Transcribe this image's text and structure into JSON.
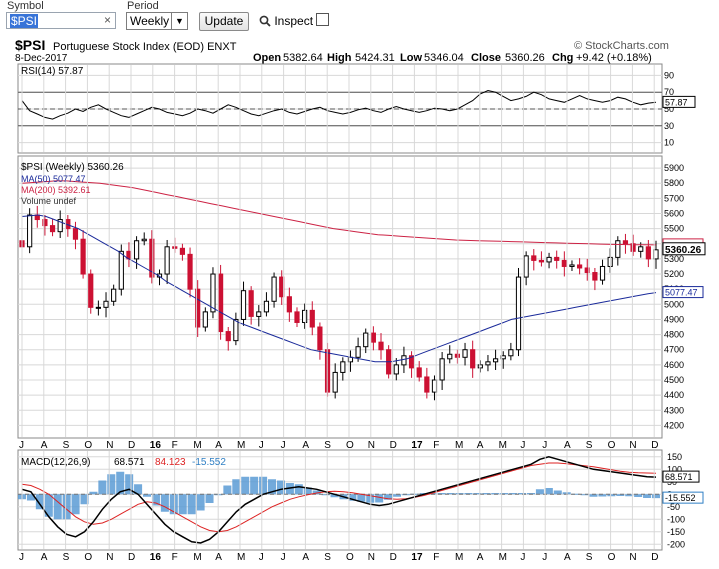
{
  "toolbar": {
    "symbol_label": "Symbol",
    "symbol_value": "$PSI",
    "clear_glyph": "×",
    "period_label": "Period",
    "period_value": "Weekly",
    "update_label": "Update",
    "inspect_label": "Inspect",
    "inspect_checked": false
  },
  "chart_data": {
    "type": "candlestick",
    "symbol": "$PSI",
    "title": "Portuguese Stock Index (EOD) ENXT",
    "date": "8-Dec-2017",
    "watermark": "© StockCharts.com",
    "ohlc_labels": {
      "open": "5382.64",
      "high": "5424.31",
      "low": "5346.04",
      "close": "5360.26",
      "chg": "+9.42 (+0.18%)"
    },
    "x_labels": [
      "J",
      "A",
      "S",
      "O",
      "N",
      "D",
      "16",
      "F",
      "M",
      "A",
      "M",
      "J",
      "J",
      "A",
      "S",
      "O",
      "N",
      "D",
      "17",
      "F",
      "M",
      "A",
      "M",
      "J",
      "J",
      "A",
      "S",
      "O",
      "N",
      "D"
    ],
    "colors": {
      "up": "#000000",
      "down": "#cc1133",
      "ma50": "#1a2a9a",
      "ma200": "#cc2244",
      "volume": "#5b9bd5",
      "grid": "#d8d8d8",
      "macd": "#000000",
      "signal": "#dd2222"
    },
    "rsi": {
      "legend": "RSI(14) 57.87",
      "value": 57.87,
      "ticks": [
        "90",
        "70",
        "50",
        "30",
        "10"
      ],
      "range": [
        0,
        100
      ],
      "overbought": 70,
      "oversold": 30,
      "current_label": "57.87",
      "values": [
        60,
        48,
        44,
        40,
        38,
        42,
        45,
        50,
        47,
        52,
        55,
        50,
        46,
        42,
        40,
        44,
        48,
        52,
        50,
        46,
        44,
        42,
        45,
        50,
        48,
        45,
        50,
        55,
        52,
        48,
        44,
        42,
        45,
        48,
        50,
        46,
        44,
        47,
        50,
        52,
        48,
        46,
        44,
        46,
        49,
        51,
        48,
        46,
        50,
        53,
        50,
        48,
        46,
        48,
        51,
        50,
        48,
        50,
        55,
        60,
        68,
        72,
        70,
        65,
        60,
        62,
        65,
        70,
        67,
        62,
        60,
        58,
        62,
        66,
        62,
        60,
        58,
        60,
        64,
        62,
        58,
        55,
        57,
        58
      ]
    },
    "price": {
      "legend_main": "$PSI (Weekly) 5360.26",
      "legend_ma50": "MA(50) 5077.47",
      "legend_ma200": "MA(200) 5392.61",
      "legend_volume": "Volume undef",
      "y_ticks": [
        4200,
        4300,
        4400,
        4500,
        4600,
        4700,
        4800,
        4900,
        5000,
        5100,
        5200,
        5300,
        5400,
        5500,
        5600,
        5700,
        5800,
        5900
      ],
      "y_range": [
        4130,
        5960
      ],
      "last_close": 5360.26,
      "last_close_label": "5360.26",
      "ma50_last": 5077.47,
      "ma50_label": "5077.47",
      "ma200_last": 5392.61,
      "closes": [
        5380,
        5590,
        5560,
        5520,
        5480,
        5560,
        5500,
        5430,
        5200,
        4980,
        4980,
        5020,
        5100,
        5350,
        5300,
        5420,
        5430,
        5180,
        5200,
        5380,
        5370,
        5330,
        5100,
        4850,
        4950,
        5200,
        4820,
        4760,
        4900,
        5090,
        4920,
        4950,
        5020,
        5180,
        5050,
        4950,
        4880,
        4960,
        4850,
        4700,
        4420,
        4550,
        4620,
        4650,
        4720,
        4810,
        4750,
        4700,
        4540,
        4600,
        4660,
        4580,
        4520,
        4420,
        4500,
        4640,
        4670,
        4650,
        4700,
        4580,
        4600,
        4620,
        4640,
        4660,
        4700,
        5180,
        5320,
        5290,
        5280,
        5310,
        5290,
        5250,
        5260,
        5240,
        5210,
        5160,
        5250,
        5310,
        5420,
        5400,
        5350,
        5380,
        5300,
        5360
      ],
      "ma50": [
        5580,
        5585,
        5590,
        5580,
        5560,
        5540,
        5520,
        5500,
        5470,
        5440,
        5410,
        5380,
        5350,
        5310,
        5280,
        5250,
        5220,
        5190,
        5150,
        5120,
        5090,
        5060,
        5030,
        5000,
        4970,
        4940,
        4910,
        4880,
        4860,
        4840,
        4820,
        4800,
        4780,
        4760,
        4740,
        4720,
        4700,
        4690,
        4680,
        4670,
        4660,
        4650,
        4640,
        4630,
        4620,
        4620,
        4620,
        4630,
        4640,
        4660,
        4680,
        4700,
        4720,
        4740,
        4760,
        4780,
        4800,
        4820,
        4840,
        4860,
        4880,
        4900,
        4910,
        4920,
        4930,
        4940,
        4950,
        4960,
        4970,
        4980,
        4990,
        5000,
        5010,
        5020,
        5030,
        5040,
        5050,
        5060,
        5070,
        5077.47
      ],
      "ma200": [
        5800,
        5805,
        5810,
        5815,
        5815,
        5810,
        5805,
        5800,
        5790,
        5780,
        5770,
        5755,
        5740,
        5725,
        5710,
        5695,
        5680,
        5665,
        5650,
        5635,
        5620,
        5605,
        5590,
        5575,
        5560,
        5545,
        5530,
        5515,
        5500,
        5490,
        5480,
        5470,
        5460,
        5455,
        5450,
        5445,
        5440,
        5435,
        5430,
        5425,
        5422,
        5420,
        5418,
        5416,
        5414,
        5412,
        5410,
        5408,
        5406,
        5404,
        5402,
        5400,
        5398,
        5396,
        5395,
        5394,
        5393,
        5392.61
      ]
    },
    "macd": {
      "legend_label": "MACD(12,26,9)",
      "macd_value": "68.571",
      "signal_value": "84.123",
      "hist_value": "-15.552",
      "y_ticks": [
        "150",
        "100",
        "50",
        "0",
        "-50",
        "-100",
        "-150",
        "-200"
      ],
      "y_range": [
        -215,
        165
      ],
      "macd": [
        20,
        10,
        -40,
        -90,
        -130,
        -160,
        -170,
        -150,
        -110,
        -60,
        -20,
        10,
        20,
        0,
        -40,
        -80,
        -120,
        -150,
        -170,
        -190,
        -195,
        -180,
        -150,
        -110,
        -70,
        -40,
        -20,
        0,
        10,
        20,
        25,
        30,
        25,
        20,
        10,
        0,
        -10,
        -20,
        -30,
        -40,
        -45,
        -40,
        -30,
        -20,
        -10,
        0,
        10,
        20,
        30,
        40,
        50,
        60,
        70,
        80,
        90,
        100,
        110,
        120,
        140,
        150,
        140,
        130,
        120,
        110,
        100,
        95,
        90,
        85,
        80,
        75,
        70,
        68.571
      ],
      "signal": [
        40,
        35,
        20,
        0,
        -30,
        -60,
        -90,
        -110,
        -120,
        -115,
        -100,
        -80,
        -60,
        -40,
        -30,
        -35,
        -50,
        -70,
        -90,
        -110,
        -130,
        -145,
        -150,
        -145,
        -130,
        -110,
        -90,
        -70,
        -50,
        -35,
        -20,
        -10,
        -2,
        5,
        10,
        12,
        10,
        6,
        0,
        -6,
        -12,
        -18,
        -20,
        -18,
        -12,
        -5,
        5,
        15,
        25,
        35,
        45,
        55,
        65,
        75,
        85,
        95,
        105,
        115,
        120,
        125,
        125,
        122,
        118,
        114,
        110,
        104,
        98,
        92,
        88,
        86,
        85,
        84.123
      ]
    }
  }
}
